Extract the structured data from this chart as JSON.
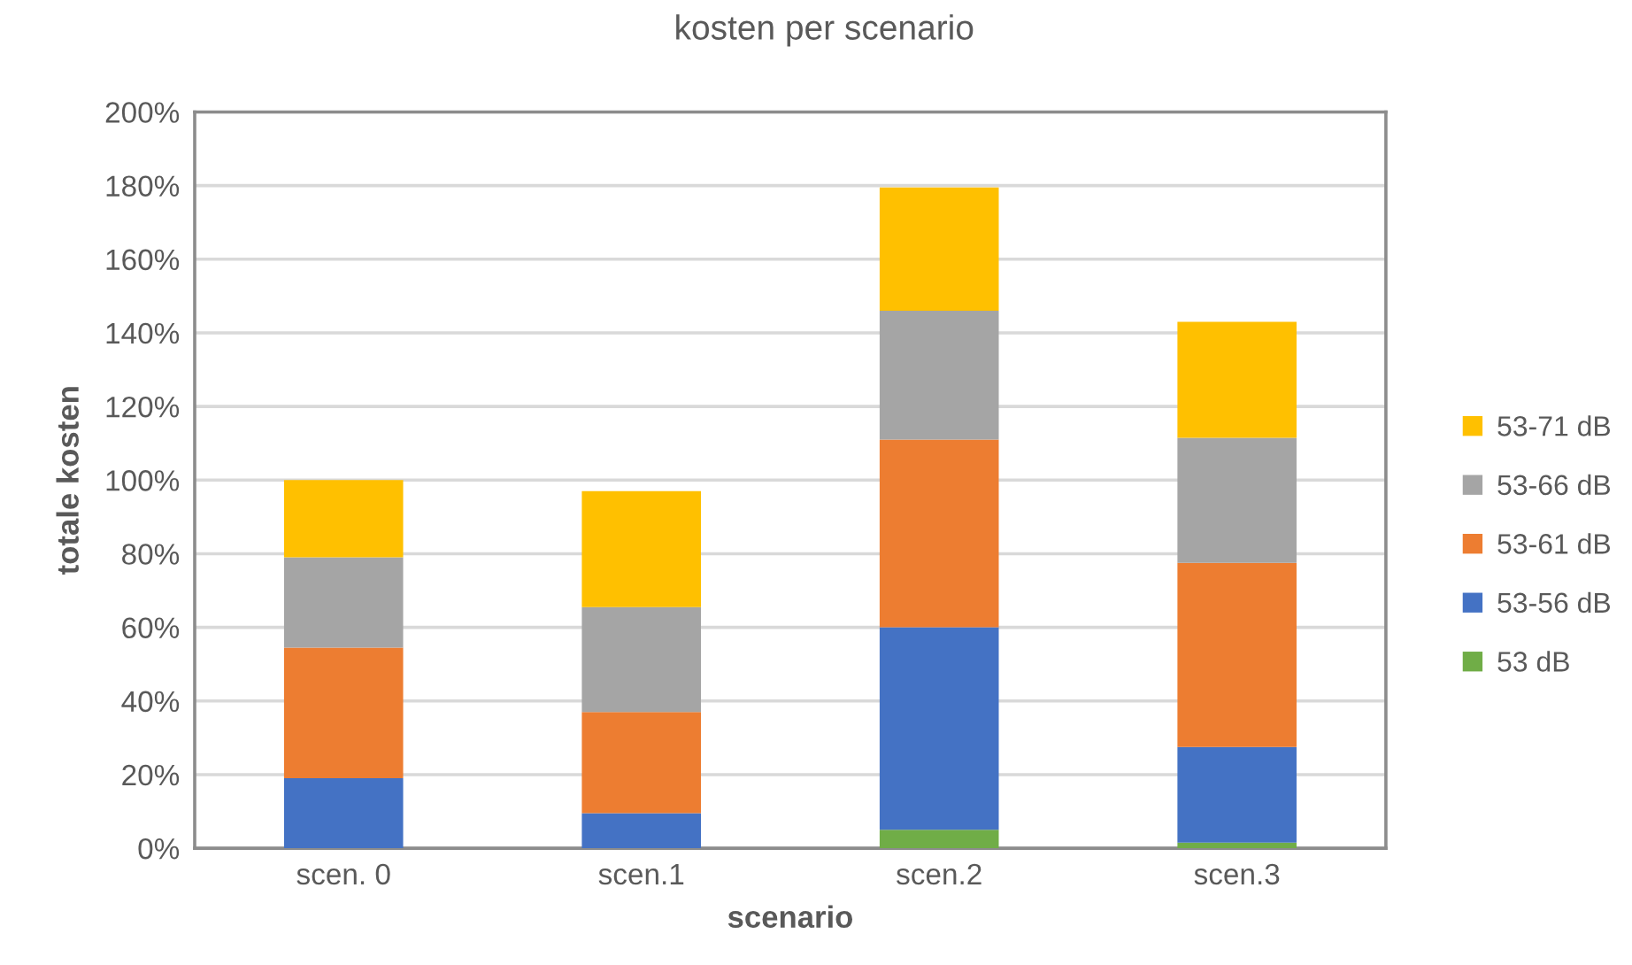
{
  "chart_data": {
    "type": "bar",
    "title": "kosten per scenario",
    "xlabel": "scenario",
    "ylabel": "totale kosten",
    "categories": [
      "scen. 0",
      "scen.1",
      "scen.2",
      "scen.3"
    ],
    "stacked": true,
    "series": [
      {
        "name": "53 dB",
        "color": "#70ad47",
        "values": [
          null,
          null,
          5,
          1.5
        ]
      },
      {
        "name": "53-56 dB",
        "color": "#4472c4",
        "values": [
          19,
          9.5,
          55,
          26
        ]
      },
      {
        "name": "53-61 dB",
        "color": "#ed7d31",
        "values": [
          35.5,
          27.5,
          51,
          50
        ]
      },
      {
        "name": "53-66 dB",
        "color": "#a5a5a5",
        "values": [
          24.5,
          28.5,
          35,
          34
        ]
      },
      {
        "name": "53-71 dB",
        "color": "#ffc000",
        "values": [
          21,
          31.5,
          33.5,
          31.5
        ]
      }
    ],
    "ylim": [
      0,
      200
    ],
    "yticks": [
      {
        "value": 0,
        "label": "0%"
      },
      {
        "value": 20,
        "label": "20%"
      },
      {
        "value": 40,
        "label": "40%"
      },
      {
        "value": 60,
        "label": "60%"
      },
      {
        "value": 80,
        "label": "80%"
      },
      {
        "value": 100,
        "label": "100%"
      },
      {
        "value": 120,
        "label": "120%"
      },
      {
        "value": 140,
        "label": "140%"
      },
      {
        "value": 160,
        "label": "160%"
      },
      {
        "value": 180,
        "label": "180%"
      },
      {
        "value": 200,
        "label": "200%"
      }
    ],
    "grid": "y",
    "legend": "right"
  }
}
